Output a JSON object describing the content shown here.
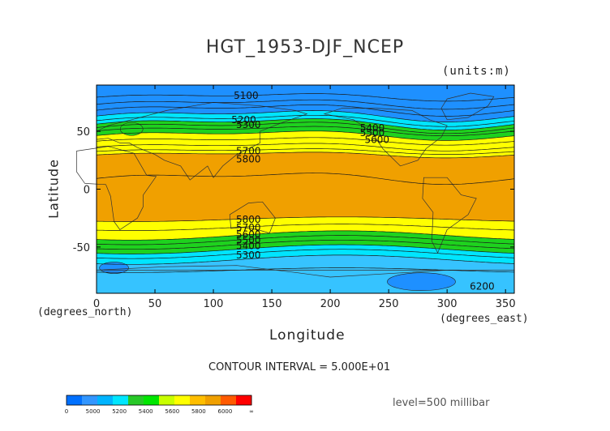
{
  "chart_data": {
    "type": "contour",
    "title": "HGT_1953-DJF_NCEP",
    "units": "(units:m)",
    "xlabel": "Longitude",
    "ylabel": "Latitude",
    "x_unit_label": "(degrees_east)",
    "y_unit_label": "(degrees_north)",
    "xlim": [
      0,
      357.5
    ],
    "ylim": [
      -90,
      90
    ],
    "x_ticks": [
      0,
      50,
      100,
      150,
      200,
      250,
      300,
      350
    ],
    "y_ticks": [
      50,
      0,
      -50
    ],
    "contour_interval_text": "CONTOUR INTERVAL = 5.000E+01",
    "level_text": "level=500 millibar",
    "contour_labels": [
      {
        "text": "5100",
        "lon": 128,
        "lat": 78
      },
      {
        "text": "5200",
        "lon": 126,
        "lat": 57
      },
      {
        "text": "5300",
        "lon": 130,
        "lat": 53
      },
      {
        "text": "5400",
        "lon": 236,
        "lat": 50
      },
      {
        "text": "5500",
        "lon": 236,
        "lat": 46
      },
      {
        "text": "5600",
        "lon": 240,
        "lat": 40
      },
      {
        "text": "5700",
        "lon": 130,
        "lat": 30
      },
      {
        "text": "5800",
        "lon": 130,
        "lat": 23
      },
      {
        "text": "5800",
        "lon": 130,
        "lat": -29
      },
      {
        "text": "5700",
        "lon": 130,
        "lat": -36
      },
      {
        "text": "5600",
        "lon": 130,
        "lat": -42
      },
      {
        "text": "5500",
        "lon": 130,
        "lat": -47
      },
      {
        "text": "5400",
        "lon": 130,
        "lat": -52
      },
      {
        "text": "5300",
        "lon": 130,
        "lat": -60
      },
      {
        "text": "6200",
        "lon": 330,
        "lat": -87
      }
    ],
    "colorbar": {
      "labels": [
        "0",
        "5000",
        "5200",
        "5400",
        "5600",
        "5800",
        "6000",
        "∞"
      ],
      "colors": [
        "#0070ff",
        "#3296ff",
        "#00b4ff",
        "#00e6ff",
        "#28c828",
        "#00e600",
        "#c8ff00",
        "#ffff00",
        "#ffbe00",
        "#f0a000",
        "#ff5a00",
        "#ff0000"
      ]
    },
    "fill_colors": {
      "ocean_blue": "#1e90ff",
      "light_blue": "#36c3ff",
      "cyan": "#00e5ff",
      "green": "#1ed21e",
      "yellow_green": "#c8f000",
      "yellow": "#ffff00",
      "orange": "#f0a000"
    }
  }
}
